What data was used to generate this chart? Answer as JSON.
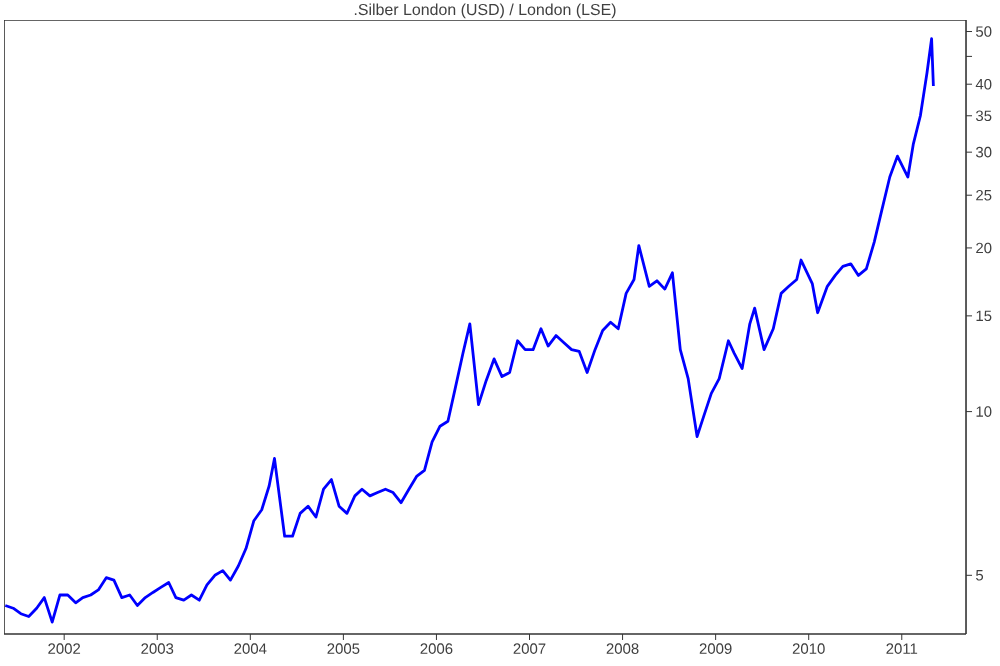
{
  "chart_data": {
    "type": "line",
    "title": ".Silber London (USD) / London (LSE)",
    "color": "#0000ff",
    "log": "y",
    "xlim": [
      "2001-05-10",
      "2011-09-10"
    ],
    "ylim": [
      3.9,
      52.5
    ],
    "xticks": [
      "2002",
      "2003",
      "2004",
      "2005",
      "2006",
      "2007",
      "2008",
      "2009",
      "2010",
      "2011"
    ],
    "yticks": [
      5,
      10,
      15,
      20,
      25,
      30,
      35,
      40,
      {
        "value": 45,
        "label": null
      },
      50
    ],
    "x": [
      "2001-05-15",
      "2001-06-15",
      "2001-07-15",
      "2001-08-15",
      "2001-09-15",
      "2001-10-15",
      "2001-11-15",
      "2001-12-15",
      "2002-01-15",
      "2002-02-15",
      "2002-03-15",
      "2002-04-15",
      "2002-05-15",
      "2002-06-15",
      "2002-07-15",
      "2002-08-15",
      "2002-09-15",
      "2002-10-15",
      "2002-11-15",
      "2002-12-15",
      "2003-01-15",
      "2003-02-15",
      "2003-03-15",
      "2003-04-15",
      "2003-05-15",
      "2003-06-15",
      "2003-07-15",
      "2003-08-15",
      "2003-09-15",
      "2003-10-15",
      "2003-11-15",
      "2003-12-15",
      "2004-01-15",
      "2004-02-15",
      "2004-03-15",
      "2004-04-05",
      "2004-05-15",
      "2004-06-15",
      "2004-07-15",
      "2004-08-15",
      "2004-09-15",
      "2004-10-15",
      "2004-11-15",
      "2004-12-15",
      "2005-01-15",
      "2005-02-15",
      "2005-03-15",
      "2005-04-15",
      "2005-05-15",
      "2005-06-15",
      "2005-07-15",
      "2005-08-15",
      "2005-09-15",
      "2005-10-15",
      "2005-11-15",
      "2005-12-15",
      "2006-01-15",
      "2006-02-15",
      "2006-03-15",
      "2006-04-15",
      "2006-05-12",
      "2006-06-15",
      "2006-07-15",
      "2006-08-15",
      "2006-09-15",
      "2006-10-15",
      "2006-11-15",
      "2006-12-15",
      "2007-01-15",
      "2007-02-15",
      "2007-03-15",
      "2007-04-15",
      "2007-05-15",
      "2007-06-15",
      "2007-07-15",
      "2007-08-15",
      "2007-09-15",
      "2007-10-15",
      "2007-11-15",
      "2007-12-15",
      "2008-01-15",
      "2008-02-15",
      "2008-03-05",
      "2008-04-15",
      "2008-05-15",
      "2008-06-15",
      "2008-07-15",
      "2008-08-15",
      "2008-09-15",
      "2008-10-20",
      "2008-11-15",
      "2008-12-15",
      "2009-01-15",
      "2009-02-20",
      "2009-03-15",
      "2009-04-15",
      "2009-05-15",
      "2009-06-03",
      "2009-07-10",
      "2009-08-15",
      "2009-09-15",
      "2009-10-15",
      "2009-11-15",
      "2009-12-02",
      "2010-01-15",
      "2010-02-05",
      "2010-03-15",
      "2010-04-15",
      "2010-05-15",
      "2010-06-15",
      "2010-07-15",
      "2010-08-15",
      "2010-09-15",
      "2010-10-15",
      "2010-11-15",
      "2010-12-15",
      "2011-01-25",
      "2011-02-15",
      "2011-03-15",
      "2011-04-10",
      "2011-04-28",
      "2011-05-05"
    ],
    "values": [
      4.4,
      4.35,
      4.25,
      4.2,
      4.35,
      4.55,
      4.1,
      4.6,
      4.6,
      4.45,
      4.55,
      4.6,
      4.7,
      4.95,
      4.9,
      4.55,
      4.6,
      4.4,
      4.55,
      4.65,
      4.75,
      4.85,
      4.55,
      4.5,
      4.6,
      4.5,
      4.8,
      5.0,
      5.1,
      4.9,
      5.2,
      5.6,
      6.3,
      6.6,
      7.3,
      8.2,
      5.9,
      5.9,
      6.5,
      6.7,
      6.4,
      7.2,
      7.5,
      6.7,
      6.5,
      7.0,
      7.2,
      7.0,
      7.1,
      7.2,
      7.1,
      6.8,
      7.2,
      7.6,
      7.8,
      8.8,
      9.4,
      9.6,
      11.0,
      12.8,
      14.5,
      10.3,
      11.4,
      12.5,
      11.6,
      11.8,
      13.5,
      13.0,
      13.0,
      14.2,
      13.2,
      13.8,
      13.4,
      13.0,
      12.9,
      11.8,
      13.0,
      14.1,
      14.6,
      14.2,
      16.5,
      17.5,
      20.2,
      17.0,
      17.4,
      16.8,
      18.0,
      13.0,
      11.5,
      9.0,
      9.8,
      10.8,
      11.5,
      13.5,
      12.8,
      12.0,
      14.5,
      15.5,
      13.0,
      14.2,
      16.5,
      17.0,
      17.5,
      19.0,
      17.2,
      15.2,
      17.0,
      17.8,
      18.5,
      18.7,
      17.8,
      18.3,
      20.5,
      23.5,
      27.0,
      29.5,
      27.0,
      31.0,
      35.0,
      42.0,
      48.5,
      39.7
    ]
  }
}
